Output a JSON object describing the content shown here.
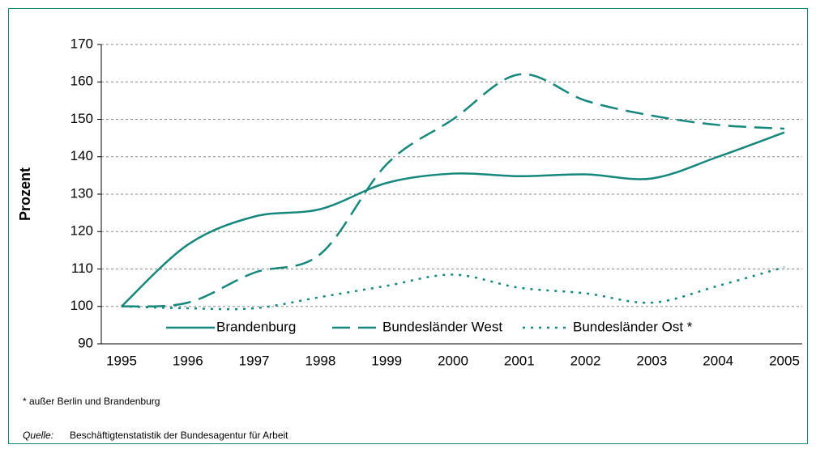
{
  "chart_data": {
    "type": "line",
    "y_label": "Prozent",
    "categories": [
      "1995",
      "1996",
      "1997",
      "1998",
      "1999",
      "2000",
      "2001",
      "2002",
      "2003",
      "2004",
      "2005"
    ],
    "series": [
      {
        "name": "Brandenburg",
        "color": "#15877d",
        "dash": "solid",
        "values": [
          100,
          116.5,
          124,
          126,
          133,
          135.5,
          134.8,
          135.3,
          134.2,
          140,
          146.5
        ]
      },
      {
        "name": "Bundesländer West",
        "color": "#15877d",
        "dash": "long",
        "values": [
          100,
          101,
          109,
          114,
          138,
          150,
          162,
          155,
          151,
          148.5,
          147.5
        ]
      },
      {
        "name": "Bundesländer Ost *",
        "color": "#15877d",
        "dash": "dotted",
        "values": [
          100,
          99.5,
          99.5,
          102.5,
          105.5,
          108.5,
          105,
          103.5,
          101,
          105.5,
          110.5
        ]
      }
    ],
    "ylim": [
      90,
      170
    ],
    "yticks": [
      90,
      100,
      110,
      120,
      130,
      140,
      150,
      160,
      170
    ],
    "grid": true,
    "legend": "bottom",
    "footnote": "* außer Berlin und Brandenburg",
    "source_label": "Quelle:",
    "source": "Beschäftigtenstatistik der Bundesagentur für Arbeit"
  }
}
